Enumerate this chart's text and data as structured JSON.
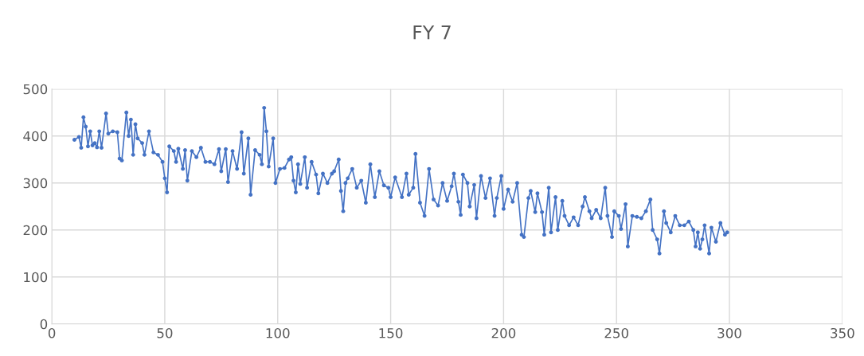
{
  "chart_data": {
    "type": "line",
    "title": "FY 7",
    "x": [
      10,
      12,
      13,
      14,
      15,
      16,
      17,
      18,
      19,
      20,
      21,
      22,
      24,
      25,
      27,
      29,
      30,
      31,
      33,
      34,
      35,
      36,
      37,
      38,
      40,
      41,
      43,
      45,
      47,
      49,
      50,
      51,
      52,
      54,
      55,
      56,
      58,
      59,
      60,
      62,
      64,
      66,
      68,
      70,
      72,
      74,
      75,
      77,
      78,
      80,
      82,
      84,
      85,
      87,
      88,
      90,
      92,
      93,
      94,
      95,
      96,
      98,
      99,
      101,
      103,
      105,
      106,
      107,
      108,
      109,
      110,
      112,
      113,
      115,
      117,
      118,
      120,
      122,
      124,
      125,
      127,
      128,
      129,
      130,
      131,
      133,
      135,
      137,
      139,
      141,
      143,
      145,
      147,
      149,
      150,
      152,
      155,
      157,
      158,
      160,
      161,
      163,
      165,
      167,
      169,
      171,
      173,
      175,
      177,
      178,
      180,
      181,
      182,
      184,
      185,
      187,
      188,
      190,
      192,
      194,
      196,
      197,
      199,
      200,
      202,
      204,
      206,
      208,
      209,
      211,
      212,
      214,
      215,
      217,
      218,
      220,
      221,
      223,
      224,
      226,
      227,
      229,
      231,
      233,
      235,
      236,
      238,
      239,
      241,
      243,
      245,
      246,
      248,
      249,
      251,
      252,
      254,
      255,
      257,
      259,
      261,
      263,
      265,
      266,
      268,
      269,
      271,
      272,
      274,
      276,
      278,
      280,
      282,
      284,
      285,
      286,
      287,
      288,
      289,
      291,
      292,
      294,
      296,
      298,
      299
    ],
    "series": [
      {
        "color": "#4472c4",
        "values": [
          392,
          398,
          375,
          440,
          420,
          378,
          410,
          380,
          385,
          376,
          410,
          375,
          448,
          405,
          410,
          408,
          352,
          348,
          450,
          400,
          435,
          360,
          425,
          395,
          385,
          360,
          410,
          365,
          360,
          345,
          310,
          280,
          378,
          368,
          345,
          373,
          330,
          370,
          305,
          368,
          355,
          375,
          345,
          345,
          340,
          372,
          325,
          372,
          302,
          368,
          330,
          408,
          320,
          395,
          275,
          370,
          360,
          340,
          460,
          410,
          335,
          395,
          300,
          330,
          332,
          350,
          355,
          305,
          280,
          340,
          298,
          355,
          290,
          345,
          318,
          278,
          320,
          300,
          320,
          325,
          350,
          283,
          240,
          300,
          310,
          330,
          290,
          305,
          258,
          340,
          270,
          325,
          295,
          290,
          270,
          312,
          270,
          320,
          275,
          290,
          362,
          258,
          230,
          330,
          265,
          252,
          300,
          262,
          293,
          320,
          260,
          232,
          318,
          300,
          250,
          296,
          225,
          315,
          268,
          310,
          230,
          268,
          315,
          245,
          286,
          260,
          300,
          190,
          185,
          268,
          283,
          238,
          278,
          238,
          190,
          290,
          195,
          270,
          200,
          262,
          230,
          210,
          227,
          210,
          250,
          270,
          240,
          225,
          243,
          225,
          290,
          230,
          185,
          240,
          230,
          202,
          255,
          165,
          230,
          228,
          225,
          240,
          265,
          200,
          180,
          150,
          240,
          215,
          195,
          230,
          210,
          210,
          218,
          200,
          165,
          195,
          160,
          180,
          210,
          150,
          205,
          175,
          215,
          190,
          195
        ]
      }
    ],
    "xlim": [
      0,
      350
    ],
    "xticks": [
      0,
      50,
      100,
      150,
      200,
      250,
      300,
      350
    ],
    "ylim": [
      0,
      500
    ],
    "yticks": [
      0,
      100,
      200,
      300,
      400,
      500
    ],
    "grid": true,
    "marker": "circle",
    "line_style": "solid"
  }
}
